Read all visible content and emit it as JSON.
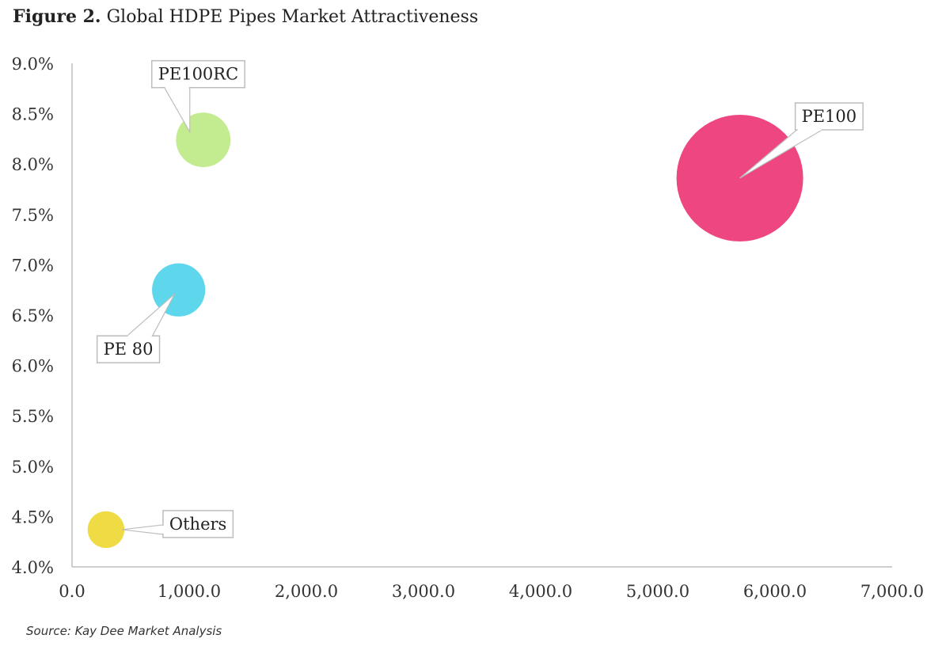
{
  "header": {
    "figure_label": "Figure 2.",
    "title_text": "Global HDPE Pipes Market Attractiveness"
  },
  "footer": {
    "source": "Source: Kay Dee Market Analysis"
  },
  "chart_data": {
    "type": "scatter",
    "subtype": "bubble",
    "title": "Figure 2. Global HDPE Pipes Market Attractiveness",
    "xlabel": "",
    "ylabel": "",
    "xlim": [
      0,
      7000
    ],
    "ylim": [
      0.04,
      0.09
    ],
    "x_ticks": [
      0,
      1000,
      2000,
      3000,
      4000,
      5000,
      6000,
      7000
    ],
    "x_tick_labels": [
      "0.0",
      "1,000.0",
      "2,000.0",
      "3,000.0",
      "4,000.0",
      "5,000.0",
      "6,000.0",
      "7,000.0"
    ],
    "y_ticks": [
      0.04,
      0.045,
      0.05,
      0.055,
      0.06,
      0.065,
      0.07,
      0.075,
      0.08,
      0.085,
      0.09
    ],
    "y_tick_labels": [
      "4.0%",
      "4.5%",
      "5.0%",
      "5.5%",
      "6.0%",
      "6.5%",
      "7.0%",
      "7.5%",
      "8.0%",
      "8.5%",
      "9.0%"
    ],
    "grid": false,
    "legend": "none",
    "series": [
      {
        "label": "PE100RC",
        "x": 1120,
        "y": 0.0824,
        "size": 0.43,
        "color": "#c3eb8f",
        "label_position": "above"
      },
      {
        "label": "PE100",
        "x": 5700,
        "y": 0.0786,
        "size": 1.0,
        "color": "#ee4680",
        "label_position": "upper-right"
      },
      {
        "label": "PE 80",
        "x": 910,
        "y": 0.0675,
        "size": 0.42,
        "color": "#5ed6eb",
        "label_position": "lower-left"
      },
      {
        "label": "Others",
        "x": 290,
        "y": 0.0437,
        "size": 0.29,
        "color": "#efdb43",
        "label_position": "right"
      }
    ]
  }
}
